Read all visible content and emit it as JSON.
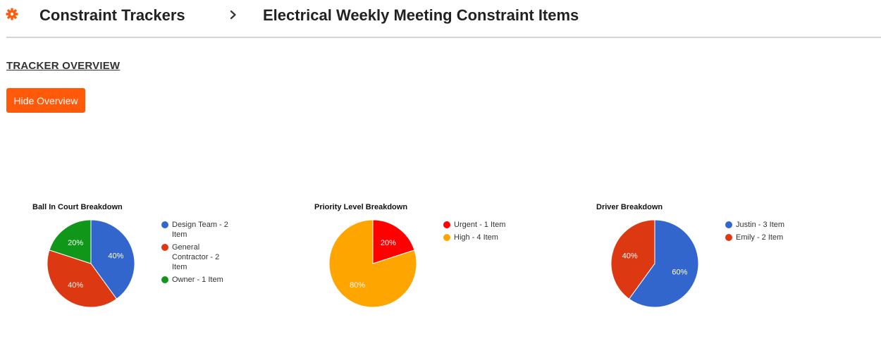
{
  "header": {
    "breadcrumb_root": "Constraint Trackers",
    "breadcrumb_current": "Electrical Weekly Meeting Constraint Items",
    "icons": {
      "app": "gear-icon",
      "separator": "chevron-right-icon"
    },
    "accent_color": "#ff5a0a"
  },
  "overview": {
    "section_title": "TRACKER OVERVIEW",
    "hide_button_label": "Hide Overview"
  },
  "chart_data": [
    {
      "type": "pie",
      "title": "Ball In Court Breakdown",
      "categories": [
        "Design Team - 2 Item",
        "General Contractor - 2 Item",
        "Owner - 1 Item"
      ],
      "values": [
        2,
        2,
        1
      ],
      "percent_labels": [
        "40%",
        "40%",
        "20%"
      ],
      "colors": [
        "#3366cc",
        "#dc3912",
        "#109618"
      ],
      "legend": "right"
    },
    {
      "type": "pie",
      "title": "Priority Level Breakdown",
      "categories": [
        "Urgent - 1 Item",
        "High - 4 Item"
      ],
      "values": [
        1,
        4
      ],
      "percent_labels": [
        "20%",
        "80%"
      ],
      "colors": [
        "#ff0000",
        "#ffa500"
      ],
      "legend": "right"
    },
    {
      "type": "pie",
      "title": "Driver Breakdown",
      "categories": [
        "Justin - 3 Item",
        "Emily - 2 Item"
      ],
      "values": [
        3,
        2
      ],
      "percent_labels": [
        "60%",
        "40%"
      ],
      "colors": [
        "#3366cc",
        "#dc3912"
      ],
      "legend": "right"
    }
  ]
}
